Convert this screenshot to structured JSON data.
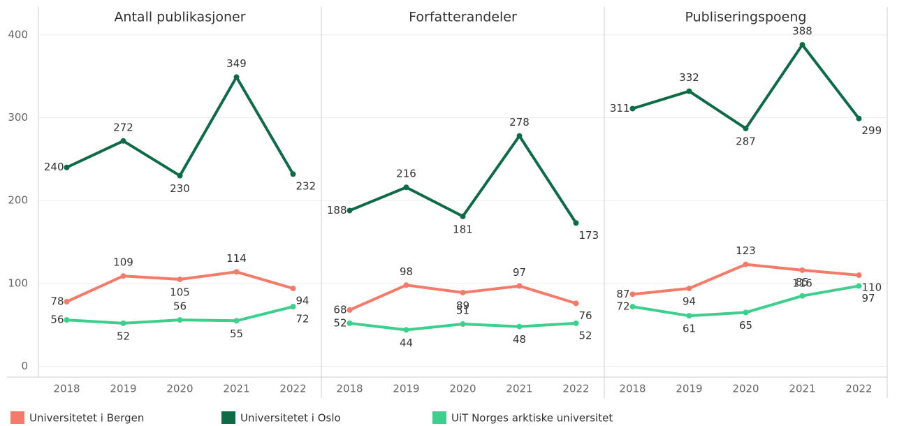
{
  "chart_data": {
    "type": "line",
    "categories": [
      "2018",
      "2019",
      "2020",
      "2021",
      "2022"
    ],
    "ylim": [
      -13,
      410
    ],
    "yticks": [
      0,
      100,
      200,
      300,
      400
    ],
    "grid": true,
    "series": [
      {
        "name": "Universitetet i Bergen",
        "color": "#f47a6a"
      },
      {
        "name": "Universitetet i Oslo",
        "color": "#0f6b47"
      },
      {
        "name": "UiT Norges arktiske universitet",
        "color": "#3ccf8e"
      }
    ],
    "panels": [
      {
        "title": "Antall publikasjoner",
        "values": [
          [
            78,
            109,
            105,
            114,
            94
          ],
          [
            240,
            272,
            230,
            349,
            232
          ],
          [
            56,
            52,
            56,
            55,
            72
          ]
        ]
      },
      {
        "title": "Forfatterandeler",
        "values": [
          [
            68,
            98,
            89,
            97,
            76
          ],
          [
            188,
            216,
            181,
            278,
            173
          ],
          [
            52,
            44,
            51,
            48,
            52
          ]
        ]
      },
      {
        "title": "Publiseringspoeng",
        "values": [
          [
            87,
            94,
            123,
            116,
            110
          ],
          [
            311,
            332,
            287,
            388,
            299
          ],
          [
            72,
            61,
            65,
            85,
            97
          ]
        ]
      }
    ]
  }
}
